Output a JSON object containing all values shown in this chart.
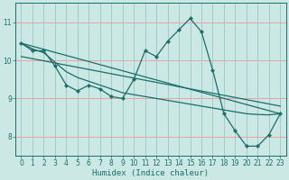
{
  "xlabel": "Humidex (Indice chaleur)",
  "bg_color": "#cce8e4",
  "grid_color_h": "#e8a0a0",
  "grid_color_v": "#a0cccc",
  "line_color": "#1a6e6a",
  "xlim": [
    -0.5,
    23.5
  ],
  "ylim": [
    7.5,
    11.5
  ],
  "yticks": [
    8,
    9,
    10,
    11
  ],
  "xticks": [
    0,
    1,
    2,
    3,
    4,
    5,
    6,
    7,
    8,
    9,
    10,
    11,
    12,
    13,
    14,
    15,
    16,
    17,
    18,
    19,
    20,
    21,
    22,
    23
  ],
  "main_x": [
    0,
    1,
    2,
    3,
    4,
    5,
    6,
    7,
    8,
    9,
    10,
    11,
    12,
    13,
    14,
    15,
    16,
    17,
    18,
    19,
    20,
    21,
    22,
    23
  ],
  "main_y": [
    10.45,
    10.25,
    10.25,
    9.85,
    9.35,
    9.2,
    9.35,
    9.25,
    9.05,
    9.0,
    9.5,
    10.25,
    10.1,
    10.5,
    10.8,
    11.1,
    10.75,
    9.75,
    8.6,
    8.15,
    7.75,
    7.75,
    8.05,
    8.6
  ],
  "trend1_x": [
    0,
    23
  ],
  "trend1_y": [
    10.45,
    8.6
  ],
  "trend2_x": [
    0,
    23
  ],
  "trend2_y": [
    10.1,
    8.8
  ],
  "smooth_x": [
    0,
    1,
    2,
    3,
    4,
    5,
    6,
    7,
    8,
    9,
    10,
    11,
    12,
    13,
    14,
    15,
    16,
    17,
    18,
    19,
    20,
    21,
    22,
    23
  ],
  "smooth_y": [
    10.45,
    10.3,
    10.2,
    9.95,
    9.7,
    9.55,
    9.45,
    9.35,
    9.25,
    9.15,
    9.1,
    9.05,
    9.0,
    8.95,
    8.9,
    8.85,
    8.8,
    8.75,
    8.7,
    8.65,
    8.6,
    8.58,
    8.57,
    8.6
  ]
}
